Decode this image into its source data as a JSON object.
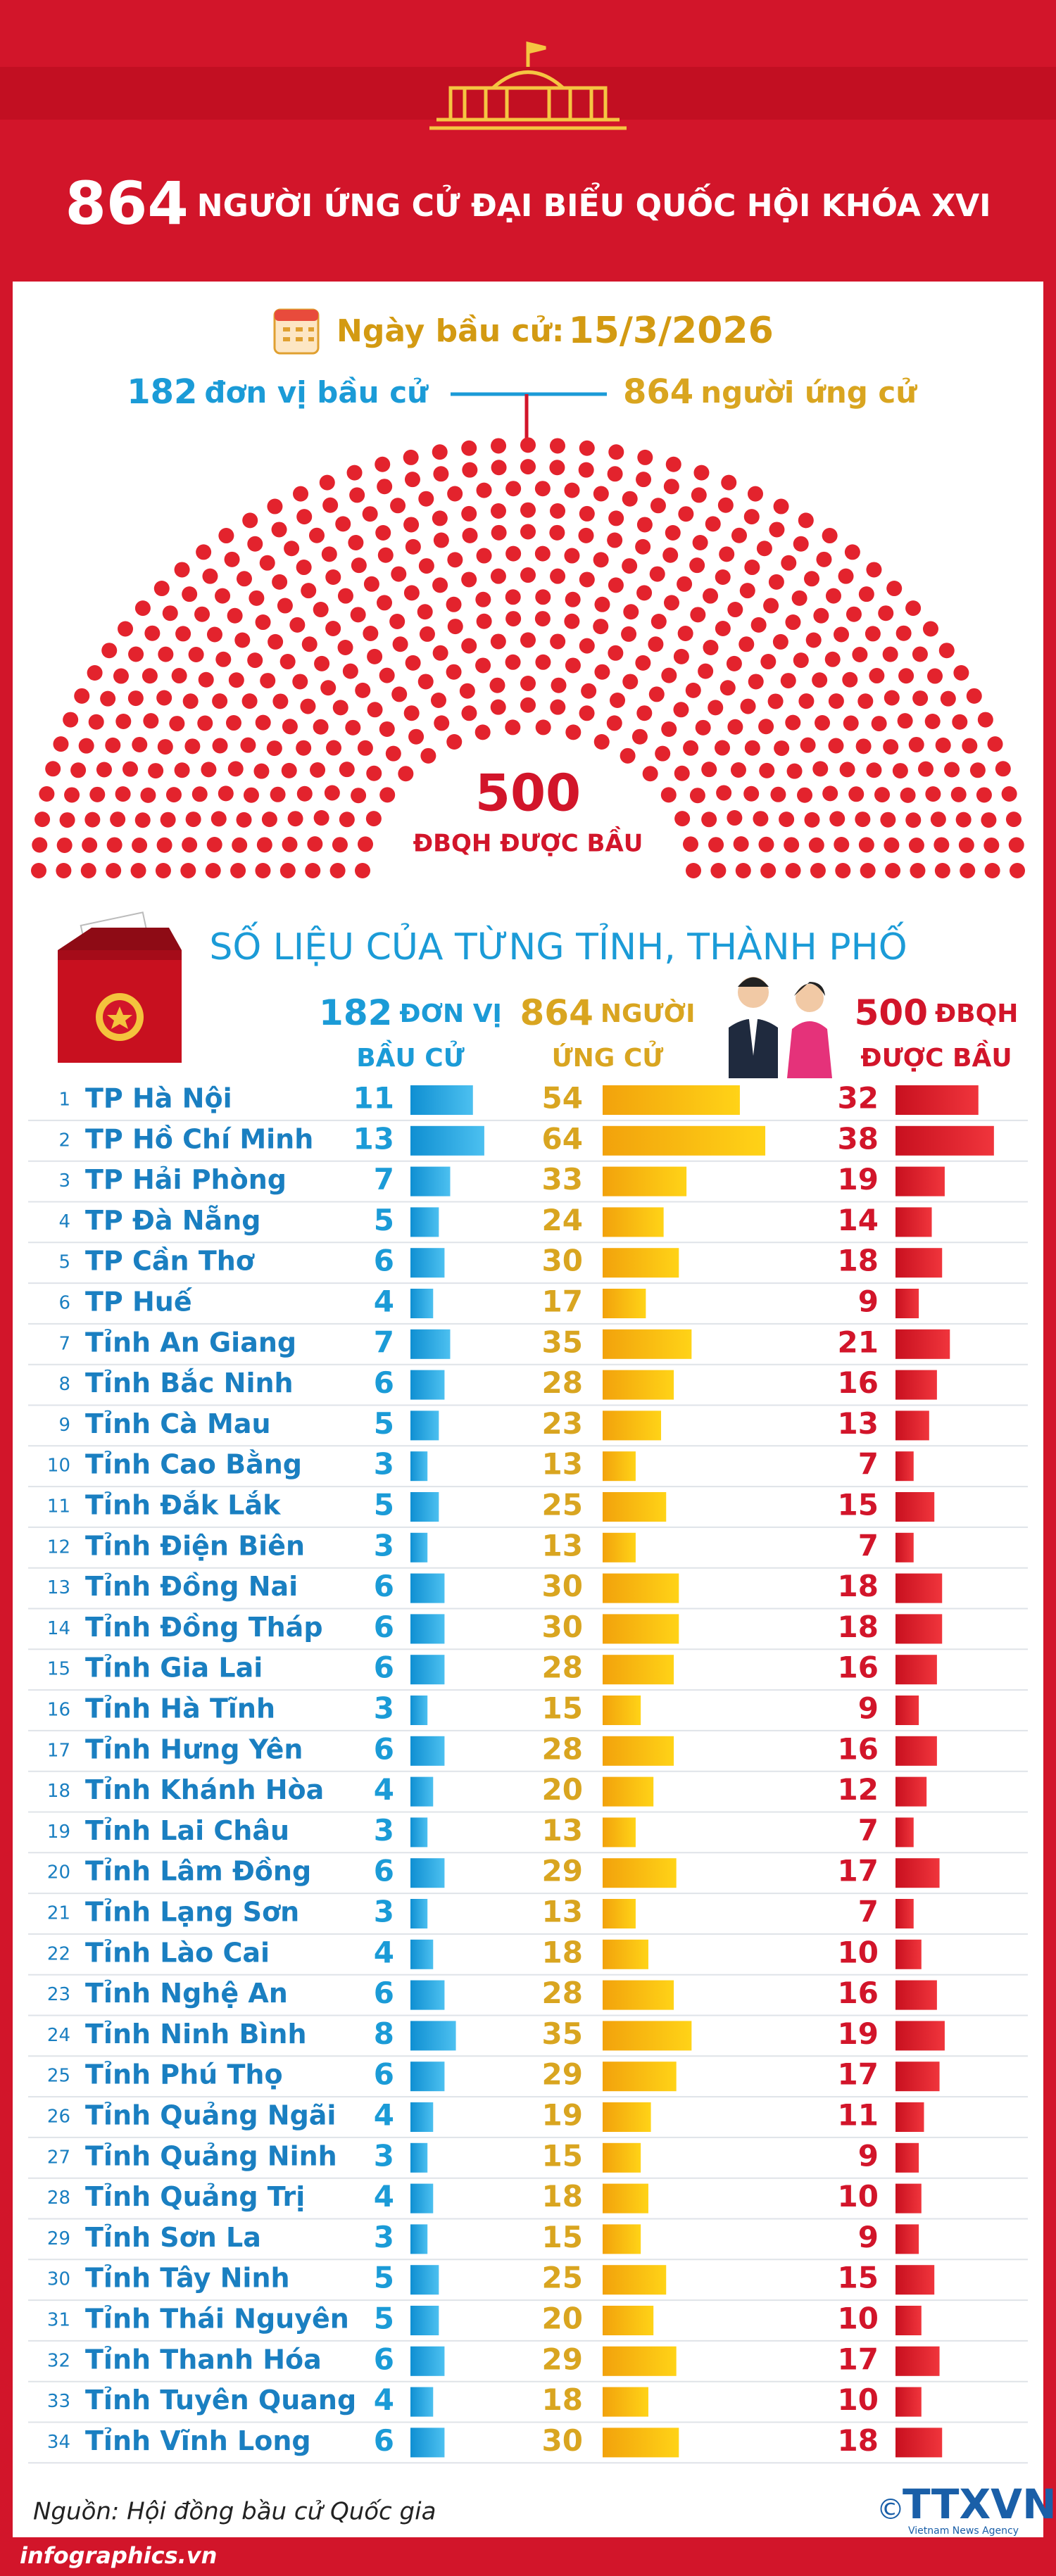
{
  "header": {
    "total": 864,
    "title": "NGƯỜI ỨNG CỬ ĐẠI BIỂU QUỐC HỘI KHÓA XVI"
  },
  "election": {
    "date_label": "Ngày bầu cử:",
    "date": "15/3/2026"
  },
  "summary": {
    "units": 182,
    "units_label": "đơn vị bầu cử",
    "candidates": 864,
    "candidates_label": "người ứng cử"
  },
  "hemicycle": {
    "seats": 500,
    "label": "ĐBQH ĐƯỢC BẦU"
  },
  "table": {
    "title": "SỐ LIỆU CỦA TỪNG TỈNH, THÀNH PHỐ",
    "columns": [
      {
        "value": 182,
        "line1": "ĐƠN VỊ",
        "line2": "BẦU CỬ"
      },
      {
        "value": 864,
        "line1": "NGƯỜI",
        "line2": "ỨNG CỬ"
      },
      {
        "value": 500,
        "line1": "ĐBQH",
        "line2": "ĐƯỢC BẦU"
      }
    ],
    "rows": [
      {
        "no": 1,
        "name": "TP Hà Nội",
        "units": 11,
        "candidates": 54,
        "seats": 32
      },
      {
        "no": 2,
        "name": "TP Hồ Chí Minh",
        "units": 13,
        "candidates": 64,
        "seats": 38
      },
      {
        "no": 3,
        "name": "TP Hải Phòng",
        "units": 7,
        "candidates": 33,
        "seats": 19
      },
      {
        "no": 4,
        "name": "TP Đà Nẵng",
        "units": 5,
        "candidates": 24,
        "seats": 14
      },
      {
        "no": 5,
        "name": "TP Cần Thơ",
        "units": 6,
        "candidates": 30,
        "seats": 18
      },
      {
        "no": 6,
        "name": "TP Huế",
        "units": 4,
        "candidates": 17,
        "seats": 9
      },
      {
        "no": 7,
        "name": "Tỉnh An Giang",
        "units": 7,
        "candidates": 35,
        "seats": 21
      },
      {
        "no": 8,
        "name": "Tỉnh Bắc Ninh",
        "units": 6,
        "candidates": 28,
        "seats": 16
      },
      {
        "no": 9,
        "name": "Tỉnh Cà Mau",
        "units": 5,
        "candidates": 23,
        "seats": 13
      },
      {
        "no": 10,
        "name": "Tỉnh Cao Bằng",
        "units": 3,
        "candidates": 13,
        "seats": 7
      },
      {
        "no": 11,
        "name": "Tỉnh Đắk Lắk",
        "units": 5,
        "candidates": 25,
        "seats": 15
      },
      {
        "no": 12,
        "name": "Tỉnh Điện Biên",
        "units": 3,
        "candidates": 13,
        "seats": 7
      },
      {
        "no": 13,
        "name": "Tỉnh Đồng Nai",
        "units": 6,
        "candidates": 30,
        "seats": 18
      },
      {
        "no": 14,
        "name": "Tỉnh Đồng Tháp",
        "units": 6,
        "candidates": 30,
        "seats": 18
      },
      {
        "no": 15,
        "name": "Tỉnh Gia Lai",
        "units": 6,
        "candidates": 28,
        "seats": 16
      },
      {
        "no": 16,
        "name": "Tỉnh Hà Tĩnh",
        "units": 3,
        "candidates": 15,
        "seats": 9
      },
      {
        "no": 17,
        "name": "Tỉnh Hưng Yên",
        "units": 6,
        "candidates": 28,
        "seats": 16
      },
      {
        "no": 18,
        "name": "Tỉnh Khánh Hòa",
        "units": 4,
        "candidates": 20,
        "seats": 12
      },
      {
        "no": 19,
        "name": "Tỉnh Lai Châu",
        "units": 3,
        "candidates": 13,
        "seats": 7
      },
      {
        "no": 20,
        "name": "Tỉnh Lâm Đồng",
        "units": 6,
        "candidates": 29,
        "seats": 17
      },
      {
        "no": 21,
        "name": "Tỉnh Lạng Sơn",
        "units": 3,
        "candidates": 13,
        "seats": 7
      },
      {
        "no": 22,
        "name": "Tỉnh Lào Cai",
        "units": 4,
        "candidates": 18,
        "seats": 10
      },
      {
        "no": 23,
        "name": "Tỉnh Nghệ An",
        "units": 6,
        "candidates": 28,
        "seats": 16
      },
      {
        "no": 24,
        "name": "Tỉnh Ninh Bình",
        "units": 8,
        "candidates": 35,
        "seats": 19
      },
      {
        "no": 25,
        "name": "Tỉnh Phú Thọ",
        "units": 6,
        "candidates": 29,
        "seats": 17
      },
      {
        "no": 26,
        "name": "Tỉnh Quảng Ngãi",
        "units": 4,
        "candidates": 19,
        "seats": 11
      },
      {
        "no": 27,
        "name": "Tỉnh Quảng Ninh",
        "units": 3,
        "candidates": 15,
        "seats": 9
      },
      {
        "no": 28,
        "name": "Tỉnh Quảng Trị",
        "units": 4,
        "candidates": 18,
        "seats": 10
      },
      {
        "no": 29,
        "name": "Tỉnh Sơn La",
        "units": 3,
        "candidates": 15,
        "seats": 9
      },
      {
        "no": 30,
        "name": "Tỉnh Tây Ninh",
        "units": 5,
        "candidates": 25,
        "seats": 15
      },
      {
        "no": 31,
        "name": "Tỉnh Thái Nguyên",
        "units": 5,
        "candidates": 20,
        "seats": 10
      },
      {
        "no": 32,
        "name": "Tỉnh Thanh Hóa",
        "units": 6,
        "candidates": 29,
        "seats": 17
      },
      {
        "no": 33,
        "name": "Tỉnh Tuyên Quang",
        "units": 4,
        "candidates": 18,
        "seats": 10
      },
      {
        "no": 34,
        "name": "Tỉnh Vĩnh Long",
        "units": 6,
        "candidates": 30,
        "seats": 18
      }
    ]
  },
  "footer": {
    "source": "Nguồn: Hội đồng bầu cử Quốc gia",
    "site": "infographics.vn",
    "copyright": "©",
    "logo": "TTXVN",
    "logo_sub": "Vietnam News Agency"
  }
}
